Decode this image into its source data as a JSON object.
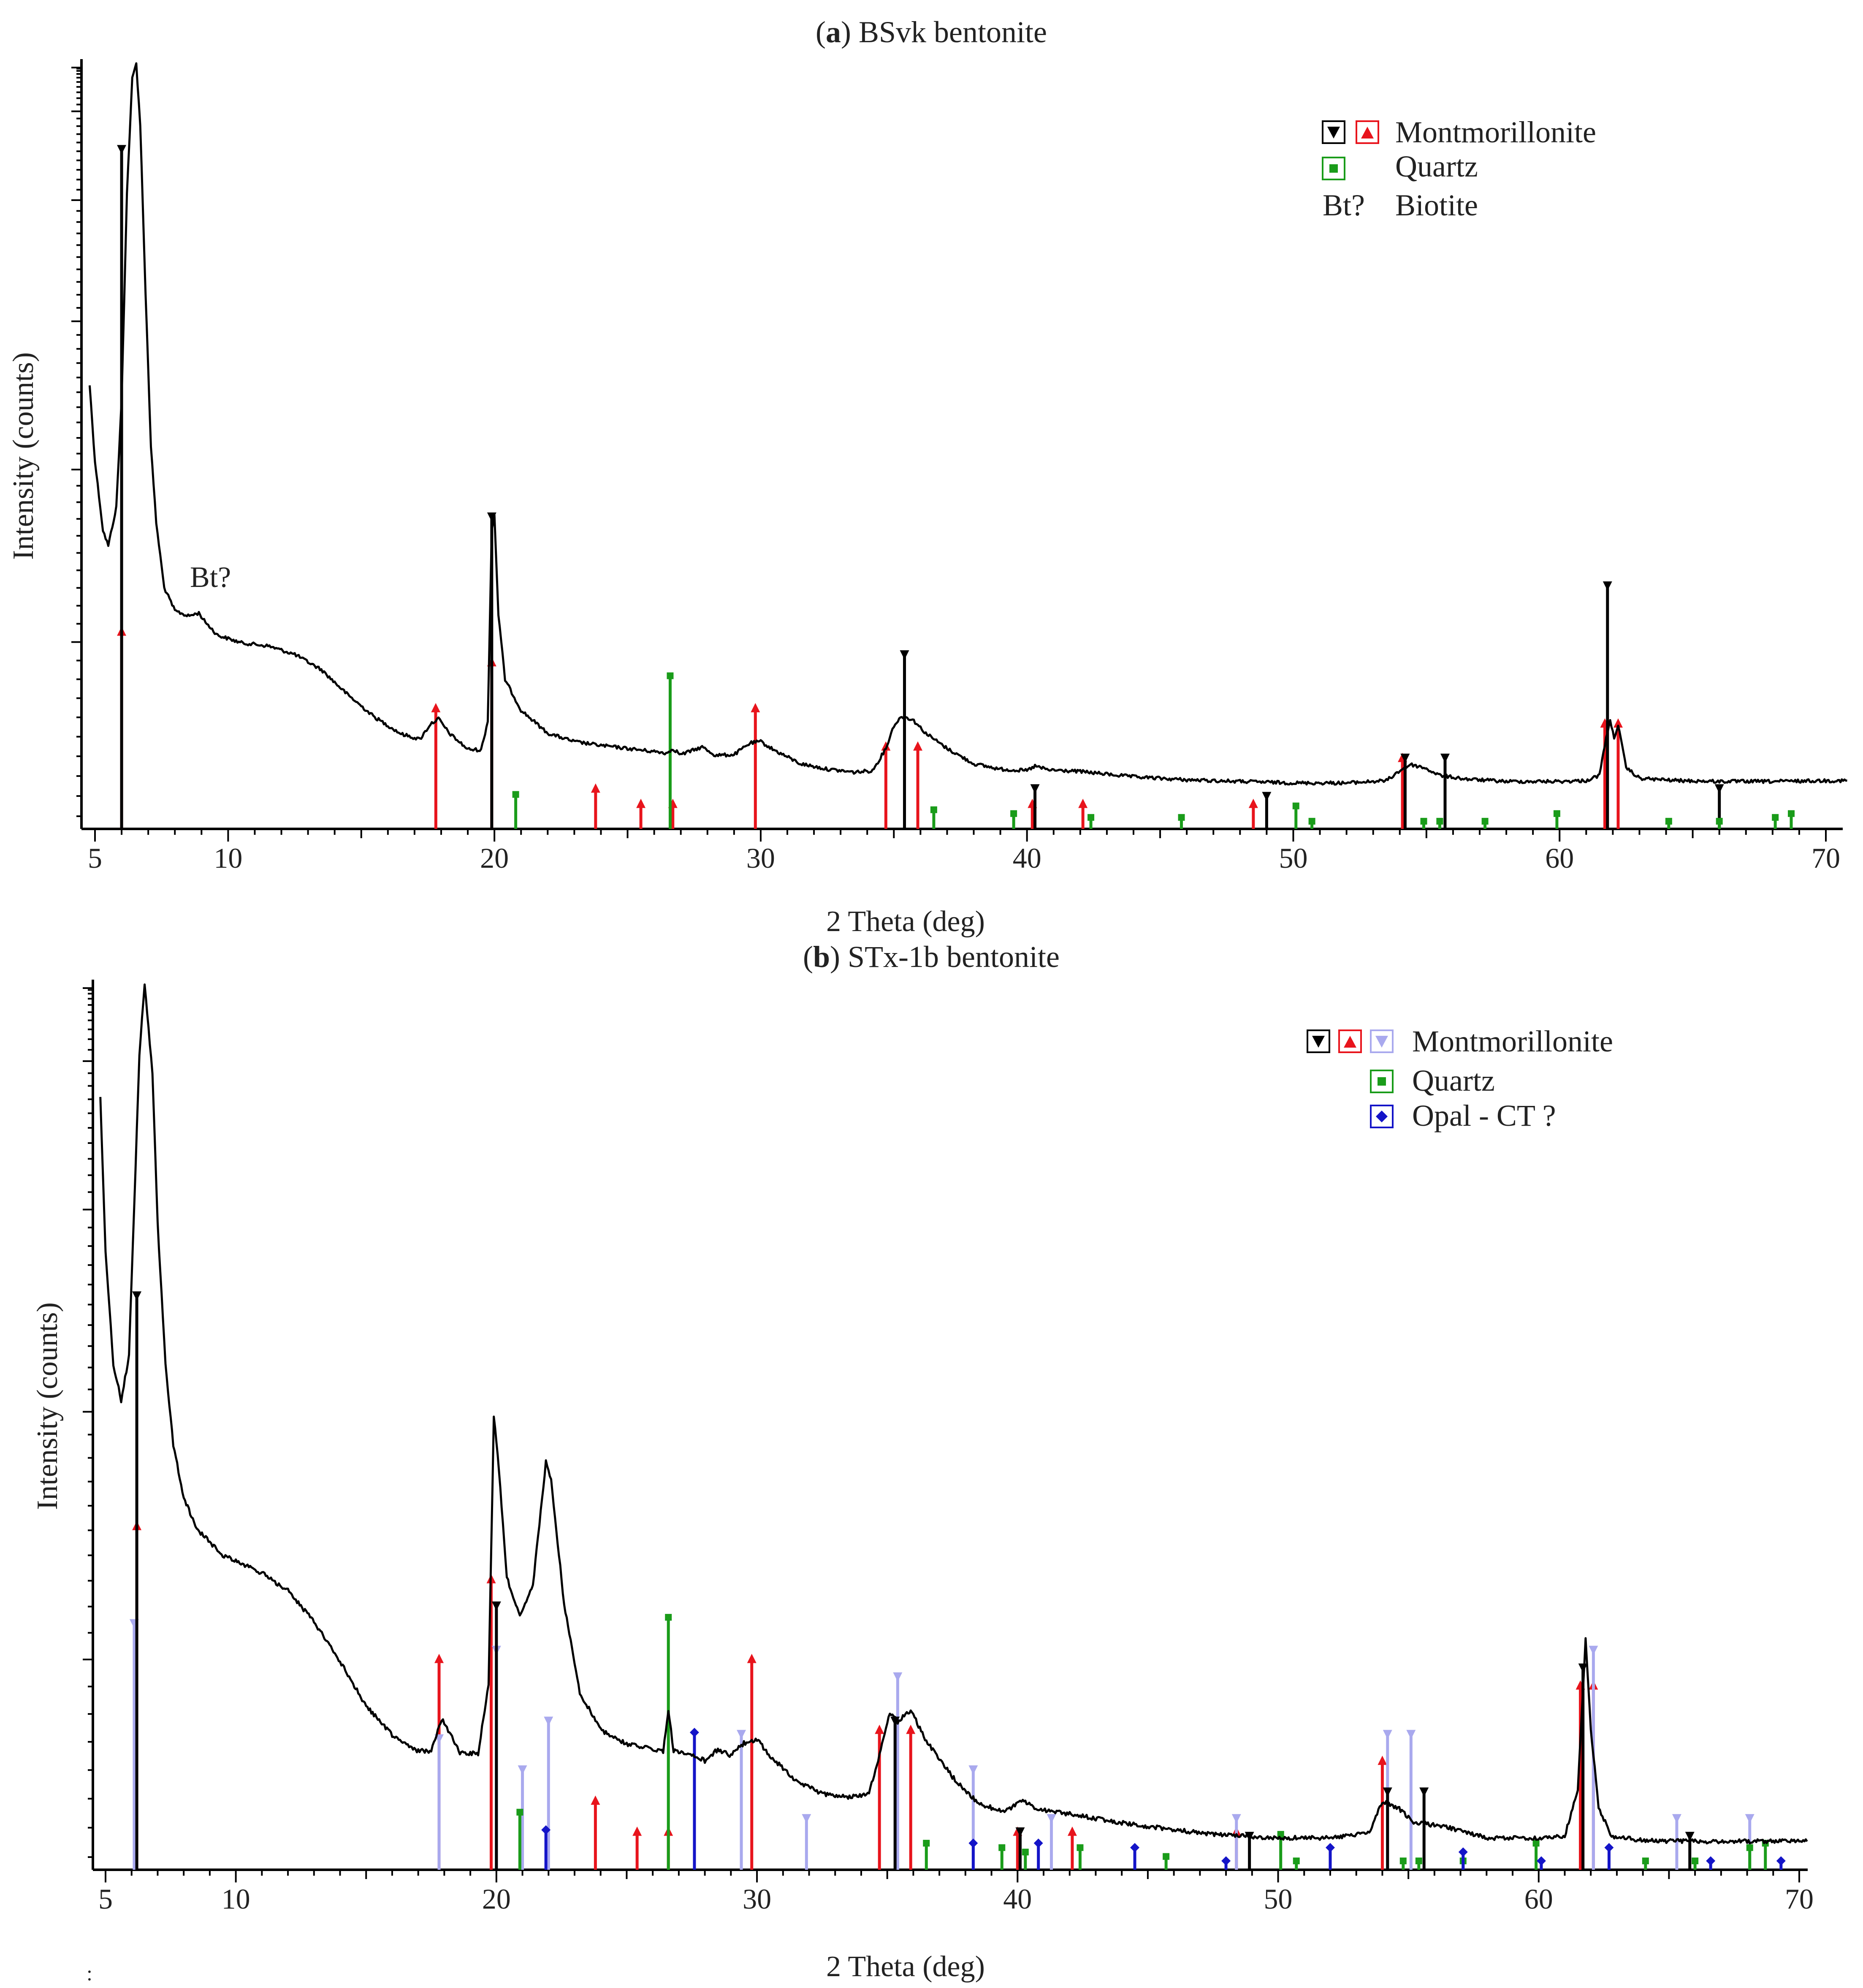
{
  "figure": {
    "footnote_mark": ":"
  },
  "chart_data": [
    {
      "id": "a",
      "type": "line",
      "title_bold": "a",
      "title_rest": "BSvk bentonite",
      "xlabel": "2 Theta (deg)",
      "ylabel": "Intensity (counts)",
      "xlim": [
        4.5,
        71
      ],
      "ylim": [
        0,
        100
      ],
      "xticks": [
        5,
        10,
        20,
        30,
        40,
        50,
        60,
        70
      ],
      "grid": false,
      "legend_position": "top-right",
      "legend": [
        {
          "symbols": [
            "#000000",
            "#e8141c"
          ],
          "label": "Montmorillonite"
        },
        {
          "symbols": [
            "#1a9c1a"
          ],
          "label": "Quartz"
        },
        {
          "text_symbol": "Bt?",
          "label": "Biotite"
        }
      ],
      "annotations": [
        {
          "text": "Bt?",
          "x": 8.7,
          "y": 33
        }
      ],
      "series": [
        {
          "name": "BSvk bentonite pattern",
          "color": "#000000",
          "points": [
            [
              4.8,
              58
            ],
            [
              5.0,
              48
            ],
            [
              5.3,
              39
            ],
            [
              5.5,
              37
            ],
            [
              5.8,
              42
            ],
            [
              6.0,
              56
            ],
            [
              6.2,
              83
            ],
            [
              6.4,
              98
            ],
            [
              6.55,
              100
            ],
            [
              6.7,
              92
            ],
            [
              6.9,
              70
            ],
            [
              7.1,
              50
            ],
            [
              7.3,
              40
            ],
            [
              7.6,
              31.5
            ],
            [
              8.0,
              28.5
            ],
            [
              8.5,
              27.8
            ],
            [
              8.9,
              28.2
            ],
            [
              9.1,
              27.2
            ],
            [
              9.6,
              25.3
            ],
            [
              10.5,
              24.3
            ],
            [
              11.5,
              23.9
            ],
            [
              12.5,
              22.8
            ],
            [
              13.5,
              20.8
            ],
            [
              14.5,
              17.5
            ],
            [
              15.5,
              14.6
            ],
            [
              16.5,
              12.4
            ],
            [
              17.2,
              11.7
            ],
            [
              17.6,
              13.7
            ],
            [
              17.9,
              14.4
            ],
            [
              18.3,
              12.5
            ],
            [
              19.0,
              10.4
            ],
            [
              19.5,
              10.3
            ],
            [
              19.75,
              14
            ],
            [
              19.9,
              39
            ],
            [
              20.0,
              41
            ],
            [
              20.15,
              28
            ],
            [
              20.4,
              19.5
            ],
            [
              21.0,
              15.5
            ],
            [
              22.0,
              12.5
            ],
            [
              23.0,
              11.4
            ],
            [
              24.0,
              10.9
            ],
            [
              25.0,
              10.5
            ],
            [
              26.0,
              10.1
            ],
            [
              26.5,
              9.9
            ],
            [
              26.7,
              10.5
            ],
            [
              27.0,
              9.7
            ],
            [
              27.8,
              10.7
            ],
            [
              28.3,
              9.6
            ],
            [
              29.0,
              9.7
            ],
            [
              29.6,
              11.2
            ],
            [
              30.0,
              11.4
            ],
            [
              30.5,
              10.3
            ],
            [
              31.5,
              8.5
            ],
            [
              32.5,
              7.8
            ],
            [
              33.5,
              7.4
            ],
            [
              34.2,
              7.6
            ],
            [
              34.7,
              10.5
            ],
            [
              35.0,
              13.5
            ],
            [
              35.3,
              14.7
            ],
            [
              35.7,
              14.3
            ],
            [
              36.2,
              12.5
            ],
            [
              37.0,
              10.5
            ],
            [
              38.0,
              8.5
            ],
            [
              39.0,
              7.8
            ],
            [
              40.0,
              7.6
            ],
            [
              40.3,
              8.2
            ],
            [
              40.8,
              7.7
            ],
            [
              42.0,
              7.5
            ],
            [
              44.0,
              6.8
            ],
            [
              46.0,
              6.4
            ],
            [
              48.0,
              6.2
            ],
            [
              50.0,
              6.0
            ],
            [
              52.0,
              6.0
            ],
            [
              53.5,
              6.3
            ],
            [
              54.0,
              7.6
            ],
            [
              54.4,
              8.4
            ],
            [
              54.9,
              8.0
            ],
            [
              55.5,
              7.0
            ],
            [
              56.5,
              6.5
            ],
            [
              58.0,
              6.2
            ],
            [
              60.0,
              6.2
            ],
            [
              61.0,
              6.3
            ],
            [
              61.5,
              7.0
            ],
            [
              61.75,
              12
            ],
            [
              61.9,
              14
            ],
            [
              62.05,
              12
            ],
            [
              62.2,
              13.5
            ],
            [
              62.5,
              8
            ],
            [
              63.0,
              6.6
            ],
            [
              64.5,
              6.3
            ],
            [
              66.0,
              6.2
            ],
            [
              68.0,
              6.2
            ],
            [
              70.0,
              6.3
            ],
            [
              70.8,
              6.3
            ]
          ]
        }
      ],
      "reference_lines": [
        {
          "phase": "Montmorillonite (red)",
          "color": "#e8141c",
          "marker": "up",
          "positions": [
            6.0,
            17.8,
            19.9,
            23.8,
            25.5,
            26.7,
            29.8,
            34.7,
            35.9,
            40.2,
            42.1,
            48.5,
            54.1,
            61.7,
            62.2
          ],
          "heights": [
            26,
            16,
            22,
            5.5,
            3.5,
            3.5,
            16,
            11,
            11,
            3.5,
            3.5,
            3.5,
            9.5,
            14,
            14
          ]
        },
        {
          "phase": "Montmorillonite (black)",
          "color": "#000000",
          "marker": "down",
          "positions": [
            6.0,
            19.9,
            35.4,
            40.3,
            49.0,
            54.2,
            55.7,
            61.8,
            66.0
          ],
          "heights": [
            89,
            41,
            23,
            5.5,
            4.5,
            9.5,
            9.5,
            32,
            5.5
          ]
        },
        {
          "phase": "Quartz",
          "color": "#1a9c1a",
          "marker": "square",
          "positions": [
            20.8,
            26.6,
            36.5,
            39.5,
            42.4,
            45.8,
            50.1,
            50.7,
            54.9,
            55.5,
            57.2,
            59.9,
            64.1,
            66.0,
            68.1,
            68.7
          ],
          "heights": [
            4.5,
            20,
            2.5,
            2,
            1.5,
            1.5,
            3,
            1,
            1,
            1,
            1,
            2,
            1,
            1,
            1.5,
            2
          ]
        }
      ]
    },
    {
      "id": "b",
      "type": "line",
      "title_bold": "b",
      "title_rest": "STx-1b bentonite",
      "xlabel": "2 Theta (deg)",
      "ylabel": "Intensity (counts)",
      "xlim": [
        4.5,
        71
      ],
      "ylim": [
        0,
        100
      ],
      "xticks": [
        5,
        10,
        20,
        30,
        40,
        50,
        60,
        70
      ],
      "grid": false,
      "legend_position": "top-right",
      "legend": [
        {
          "symbols": [
            "#000000",
            "#e8141c",
            "#a9a9ee"
          ],
          "label": "Montmorillonite"
        },
        {
          "symbols": [
            "#1a9c1a"
          ],
          "label": "Quartz"
        },
        {
          "symbols": [
            "#1414c8"
          ],
          "label": "Opal - CT ?"
        }
      ],
      "annotations": [],
      "series": [
        {
          "name": "STx-1b bentonite pattern",
          "color": "#000000",
          "points": [
            [
              4.8,
              87
            ],
            [
              5.0,
              70
            ],
            [
              5.3,
              57
            ],
            [
              5.6,
              53
            ],
            [
              5.9,
              58
            ],
            [
              6.1,
              75
            ],
            [
              6.3,
              92
            ],
            [
              6.5,
              100
            ],
            [
              6.8,
              90
            ],
            [
              7.0,
              73
            ],
            [
              7.3,
              57
            ],
            [
              7.6,
              48
            ],
            [
              8.0,
              42
            ],
            [
              8.5,
              38.5
            ],
            [
              9.5,
              35.5
            ],
            [
              11.0,
              33.5
            ],
            [
              12.0,
              31.5
            ],
            [
              13.0,
              28
            ],
            [
              14.0,
              23.5
            ],
            [
              15.0,
              18.5
            ],
            [
              16.0,
              15.2
            ],
            [
              17.0,
              13.4
            ],
            [
              17.5,
              13.4
            ],
            [
              17.9,
              17
            ],
            [
              18.2,
              15.5
            ],
            [
              18.6,
              13.2
            ],
            [
              19.3,
              13.1
            ],
            [
              19.7,
              21
            ],
            [
              19.9,
              51
            ],
            [
              20.05,
              47
            ],
            [
              20.4,
              33
            ],
            [
              20.9,
              28.5
            ],
            [
              21.4,
              32
            ],
            [
              21.9,
              46
            ],
            [
              22.1,
              44
            ],
            [
              22.6,
              30
            ],
            [
              23.2,
              20
            ],
            [
              24.0,
              15.8
            ],
            [
              25.0,
              14.2
            ],
            [
              26.0,
              13.6
            ],
            [
              26.4,
              13.4
            ],
            [
              26.6,
              18
            ],
            [
              26.8,
              13.4
            ],
            [
              27.5,
              13.1
            ],
            [
              28.0,
              12.3
            ],
            [
              28.5,
              13.6
            ],
            [
              29.0,
              12.9
            ],
            [
              29.5,
              14.3
            ],
            [
              30.0,
              14.7
            ],
            [
              30.5,
              12.9
            ],
            [
              31.5,
              10.0
            ],
            [
              32.5,
              8.6
            ],
            [
              33.5,
              8.2
            ],
            [
              34.3,
              8.6
            ],
            [
              34.7,
              13
            ],
            [
              35.1,
              17.8
            ],
            [
              35.4,
              16.7
            ],
            [
              35.9,
              18
            ],
            [
              36.5,
              14.5
            ],
            [
              37.5,
              10.5
            ],
            [
              38.5,
              7.5
            ],
            [
              39.5,
              6.5
            ],
            [
              40.2,
              7.8
            ],
            [
              40.8,
              6.8
            ],
            [
              42.0,
              6.3
            ],
            [
              44.0,
              5.3
            ],
            [
              46.0,
              4.5
            ],
            [
              48.0,
              3.9
            ],
            [
              50.0,
              3.6
            ],
            [
              52.0,
              3.6
            ],
            [
              53.5,
              4.2
            ],
            [
              54.0,
              7.7
            ],
            [
              54.6,
              7.0
            ],
            [
              55.2,
              5.4
            ],
            [
              56.5,
              4.8
            ],
            [
              58.0,
              3.6
            ],
            [
              60.0,
              3.6
            ],
            [
              61.0,
              3.8
            ],
            [
              61.5,
              9
            ],
            [
              61.8,
              26
            ],
            [
              62.0,
              16
            ],
            [
              62.3,
              7
            ],
            [
              62.8,
              3.8
            ],
            [
              64.0,
              3.3
            ],
            [
              66.0,
              3.2
            ],
            [
              68.0,
              3.2
            ],
            [
              70.0,
              3.2
            ],
            [
              70.3,
              3.2
            ]
          ]
        }
      ],
      "reference_lines": [
        {
          "phase": "Montmorillonite (red)",
          "color": "#e8141c",
          "marker": "up",
          "positions": [
            6.2,
            17.8,
            19.8,
            23.8,
            25.4,
            26.6,
            29.8,
            34.7,
            35.9,
            40.0,
            42.1,
            48.4,
            54.0,
            61.6,
            62.1
          ],
          "heights": [
            39,
            24,
            33,
            8,
            4.5,
            4.5,
            24,
            16,
            16,
            4.5,
            4.5,
            4.5,
            12.5,
            21,
            21
          ]
        },
        {
          "phase": "Montmorillonite (lavender)",
          "color": "#a9a9ee",
          "marker": "down",
          "positions": [
            6.1,
            17.8,
            20.0,
            21.0,
            22.0,
            29.4,
            31.9,
            35.4,
            38.3,
            41.3,
            48.4,
            54.2,
            55.1,
            62.1,
            65.3,
            68.1
          ],
          "heights": [
            28,
            15,
            25,
            11.5,
            17,
            15.5,
            6,
            22,
            11.5,
            6,
            6,
            15.5,
            15.5,
            25,
            6,
            6
          ]
        },
        {
          "phase": "Montmorillonite (black)",
          "color": "#000000",
          "marker": "down",
          "positions": [
            6.2,
            20.0,
            35.3,
            40.1,
            48.9,
            54.2,
            55.6,
            61.7,
            65.8
          ],
          "heights": [
            65,
            30,
            17,
            4.5,
            4,
            9,
            9,
            23,
            4
          ]
        },
        {
          "phase": "Quartz",
          "color": "#1a9c1a",
          "marker": "square",
          "positions": [
            20.9,
            26.6,
            36.5,
            39.4,
            40.3,
            42.4,
            45.7,
            50.1,
            50.7,
            54.8,
            55.4,
            57.1,
            59.9,
            64.1,
            66.0,
            68.1,
            68.7
          ],
          "heights": [
            6.5,
            28.5,
            3,
            2.5,
            2,
            2.5,
            1.5,
            4,
            1,
            1,
            1,
            1,
            3,
            1,
            1,
            2.5,
            3
          ]
        },
        {
          "phase": "Opal - CT ?",
          "color": "#1414c8",
          "marker": "diamond",
          "positions": [
            21.9,
            27.6,
            38.3,
            40.8,
            44.5,
            48.0,
            52.0,
            57.1,
            60.1,
            62.7,
            66.6,
            69.3
          ],
          "heights": [
            4.5,
            15.5,
            3,
            3,
            2.5,
            1,
            2.5,
            2,
            1,
            2.5,
            1,
            1
          ]
        }
      ]
    }
  ]
}
